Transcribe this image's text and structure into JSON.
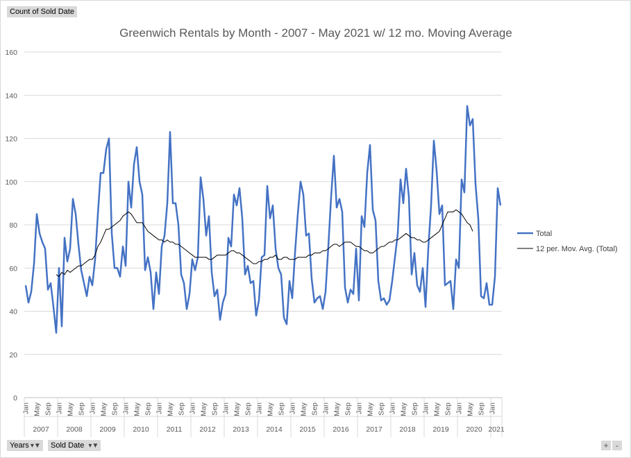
{
  "pivot": {
    "value_field": "Count of Sold Date",
    "row_fields": [
      {
        "label": "Years"
      },
      {
        "label": "Sold Date"
      }
    ],
    "zoom_in": "+",
    "zoom_out": "-"
  },
  "chart_data": {
    "type": "line",
    "title": "Greenwich Rentals by Month - 2007 - May 2021 w/ 12 mo. Moving Average",
    "ylim": [
      0,
      160
    ],
    "yticks": [
      0,
      20,
      40,
      60,
      80,
      100,
      120,
      140,
      160
    ],
    "grid": true,
    "legend_position": "right",
    "month_labels": [
      "Jan",
      "May",
      "Sep"
    ],
    "years": [
      "2007",
      "2008",
      "2009",
      "2010",
      "2011",
      "2012",
      "2013",
      "2014",
      "2015",
      "2016",
      "2017",
      "2018",
      "2019",
      "2020",
      "2021"
    ],
    "series": [
      {
        "name": "Total",
        "color": "#4472c4",
        "values": [
          52,
          44,
          49,
          62,
          85,
          76,
          72,
          69,
          50,
          53,
          42,
          30,
          60,
          33,
          74,
          63,
          69,
          92,
          85,
          71,
          59,
          53,
          47,
          56,
          52,
          64,
          85,
          104,
          104,
          115,
          120,
          76,
          60,
          60,
          56,
          70,
          61,
          100,
          88,
          108,
          116,
          100,
          94,
          59,
          65,
          58,
          41,
          58,
          48,
          70,
          75,
          90,
          123,
          90,
          90,
          80,
          57,
          53,
          41,
          48,
          64,
          59,
          65,
          102,
          92,
          75,
          84,
          58,
          47,
          50,
          36,
          44,
          48,
          74,
          70,
          94,
          89,
          97,
          83,
          57,
          61,
          53,
          54,
          38,
          45,
          65,
          66,
          98,
          83,
          89,
          69,
          60,
          57,
          37,
          34,
          54,
          46,
          67,
          85,
          100,
          94,
          75,
          76,
          55,
          44,
          46,
          47,
          41,
          49,
          70,
          93,
          112,
          88,
          92,
          86,
          51,
          44,
          50,
          48,
          69,
          45,
          84,
          79,
          104,
          117,
          87,
          82,
          54,
          45,
          46,
          43,
          45,
          54,
          65,
          76,
          101,
          90,
          106,
          93,
          57,
          67,
          52,
          49,
          60,
          42,
          69,
          89,
          119,
          105,
          85,
          89,
          52,
          53,
          54,
          41,
          64,
          60,
          101,
          95,
          135,
          126,
          129,
          99,
          83,
          47,
          46,
          53,
          43,
          43,
          56,
          97,
          89
        ]
      },
      {
        "name": "12 per. Mov. Avg. (Total)",
        "color": "#000000",
        "start_index": 11,
        "values": [
          57,
          56,
          58,
          57,
          59,
          58,
          59,
          60,
          61,
          61,
          62,
          63,
          64,
          64,
          66,
          70,
          72,
          75,
          78,
          78,
          79,
          80,
          81,
          82,
          84,
          85,
          86,
          85,
          83,
          81,
          81,
          81,
          79,
          77,
          76,
          75,
          74,
          73,
          73,
          72,
          73,
          72,
          72,
          71,
          71,
          70,
          69,
          68,
          67,
          66,
          65,
          65,
          65,
          65,
          65,
          64,
          64,
          65,
          66,
          66,
          66,
          66,
          67,
          68,
          68,
          67,
          67,
          66,
          65,
          64,
          63,
          62,
          62,
          63,
          63,
          64,
          64,
          65,
          65,
          66,
          64,
          64,
          65,
          65,
          64,
          64,
          64,
          65,
          65,
          65,
          65,
          66,
          66,
          67,
          67,
          67,
          68,
          68,
          69,
          70,
          71,
          71,
          70,
          71,
          72,
          72,
          72,
          71,
          70,
          70,
          69,
          68,
          68,
          67,
          67,
          68,
          69,
          70,
          70,
          71,
          72,
          72,
          73,
          73,
          74,
          75,
          76,
          75,
          74,
          74,
          73,
          73,
          72,
          72,
          73,
          74,
          75,
          76,
          77,
          80,
          83,
          86,
          86,
          86,
          87,
          86,
          85,
          83,
          81,
          80,
          77
        ]
      }
    ]
  }
}
